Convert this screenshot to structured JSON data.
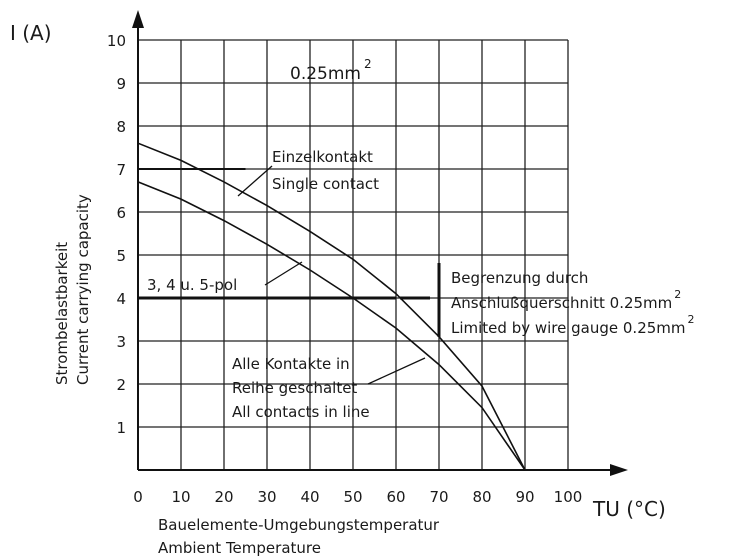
{
  "chart_data": {
    "type": "line",
    "y_unit_label": "I (A)",
    "x_unit_label": "TU (°C)",
    "ylabel": [
      "Strombelastbarkeit",
      "Current carrying capacity"
    ],
    "xlabel": [
      "Bauelemente-Umgebungstemperatur",
      "Ambient Temperature"
    ],
    "xlim": [
      0,
      100
    ],
    "ylim": [
      0,
      10
    ],
    "x_ticks": [
      "0",
      "10",
      "20",
      "30",
      "40",
      "50",
      "60",
      "70",
      "80",
      "90",
      "100"
    ],
    "y_ticks": [
      "1",
      "2",
      "3",
      "4",
      "5",
      "6",
      "7",
      "8",
      "9",
      "10"
    ],
    "grid": true,
    "wire_label": "0.25mm",
    "wire_label_sup": "2",
    "series": [
      {
        "key": "single",
        "labels": [
          "Einzelkontakt",
          "Single contact"
        ],
        "points": [
          [
            0,
            7.6
          ],
          [
            10,
            7.2
          ],
          [
            20,
            6.7
          ],
          [
            30,
            6.15
          ],
          [
            40,
            5.55
          ],
          [
            50,
            4.9
          ],
          [
            60,
            4.1
          ],
          [
            70,
            3.1
          ],
          [
            80,
            1.95
          ],
          [
            90,
            0
          ]
        ]
      },
      {
        "key": "all",
        "labels": [
          "Alle Kontakte in",
          "Reihe geschaltet",
          "All contacts in line"
        ],
        "points": [
          [
            0,
            6.7
          ],
          [
            10,
            6.3
          ],
          [
            20,
            5.8
          ],
          [
            30,
            5.25
          ],
          [
            40,
            4.65
          ],
          [
            50,
            4.0
          ],
          [
            60,
            3.3
          ],
          [
            70,
            2.45
          ],
          [
            80,
            1.45
          ],
          [
            90,
            0
          ]
        ]
      }
    ],
    "limit_single": {
      "y": 7,
      "x_end": 25
    },
    "limit_multi": {
      "y": 4,
      "x_end": 60,
      "label": "3, 4 u. 5-pol"
    },
    "wire_limit": {
      "labels": [
        "Begrenzung durch",
        "Anschlußquerschnitt 0.25mm",
        "Limited by wire gauge 0.25mm"
      ],
      "sup": "2"
    }
  }
}
